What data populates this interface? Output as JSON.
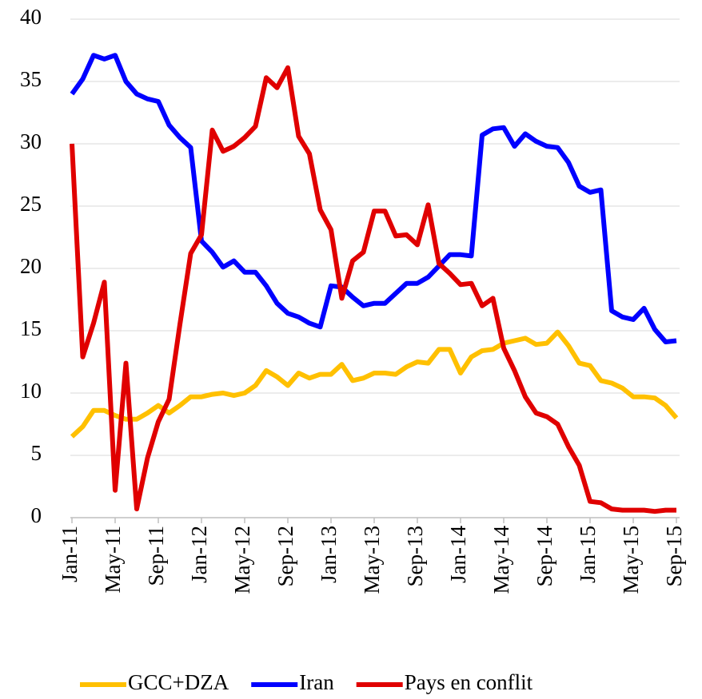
{
  "chart_data": {
    "type": "line",
    "categories": [
      "Jan-11",
      null,
      null,
      null,
      "May-11",
      null,
      null,
      null,
      "Sep-11",
      null,
      null,
      null,
      "Jan-12",
      null,
      null,
      null,
      "May-12",
      null,
      null,
      null,
      "Sep-12",
      null,
      null,
      null,
      "Jan-13",
      null,
      null,
      null,
      "May-13",
      null,
      null,
      null,
      "Sep-13",
      null,
      null,
      null,
      "Jan-14",
      null,
      null,
      null,
      "May-14",
      null,
      null,
      null,
      "Sep-14",
      null,
      null,
      null,
      "Jan-15",
      null,
      null,
      null,
      "May-15",
      null,
      null,
      null,
      "Sep-15"
    ],
    "series": [
      {
        "name": "GCC+DZA",
        "color": "#ffc000",
        "values": [
          6.5,
          7.3,
          8.6,
          8.6,
          8.2,
          7.9,
          7.9,
          8.4,
          9.0,
          8.4,
          9.0,
          9.7,
          9.7,
          9.9,
          10.0,
          9.8,
          10.0,
          10.6,
          11.8,
          11.3,
          10.6,
          11.6,
          11.2,
          11.5,
          11.5,
          12.3,
          11.0,
          11.2,
          11.6,
          11.6,
          11.5,
          12.1,
          12.5,
          12.4,
          13.5,
          13.5,
          11.6,
          12.9,
          13.4,
          13.5,
          14.0,
          14.2,
          14.4,
          13.9,
          14.0,
          14.9,
          13.8,
          12.4,
          12.2,
          11.0,
          10.8,
          10.4,
          9.7,
          9.7,
          9.6,
          9.0,
          8.0
        ]
      },
      {
        "name": "Iran",
        "color": "#0000ff",
        "values": [
          34.0,
          35.2,
          37.1,
          36.8,
          37.1,
          35.0,
          34.0,
          33.6,
          33.4,
          31.5,
          30.5,
          29.7,
          22.2,
          21.3,
          20.1,
          20.6,
          19.7,
          19.7,
          18.6,
          17.2,
          16.4,
          16.1,
          15.6,
          15.3,
          18.6,
          18.5,
          17.7,
          17.0,
          17.2,
          17.2,
          18.0,
          18.8,
          18.8,
          19.3,
          20.2,
          21.1,
          21.1,
          21.0,
          30.7,
          31.2,
          31.3,
          29.8,
          30.8,
          30.2,
          29.8,
          29.7,
          28.5,
          26.6,
          26.1,
          26.3,
          16.6,
          16.1,
          15.9,
          16.8,
          15.1,
          14.1,
          14.2
        ]
      },
      {
        "name": "Pays en conflit",
        "color": "#e00000",
        "values": [
          30.0,
          12.9,
          15.6,
          18.9,
          2.2,
          12.4,
          0.7,
          4.8,
          7.7,
          9.5,
          15.5,
          21.2,
          22.7,
          31.1,
          29.4,
          29.8,
          30.5,
          31.4,
          35.3,
          34.5,
          36.1,
          30.6,
          29.2,
          24.7,
          23.1,
          17.6,
          20.6,
          21.3,
          24.6,
          24.6,
          22.6,
          22.7,
          21.9,
          25.1,
          20.4,
          19.6,
          18.7,
          18.8,
          17.0,
          17.6,
          13.6,
          11.8,
          9.7,
          8.4,
          8.1,
          7.5,
          5.7,
          4.2,
          1.3,
          1.2,
          0.7,
          0.6,
          0.6,
          0.6,
          0.5,
          0.6,
          0.6
        ]
      }
    ],
    "ylim": [
      0,
      40
    ],
    "yticks": [
      0,
      5,
      10,
      15,
      20,
      25,
      30,
      35,
      40
    ],
    "grid": true,
    "legend": "bottom"
  }
}
